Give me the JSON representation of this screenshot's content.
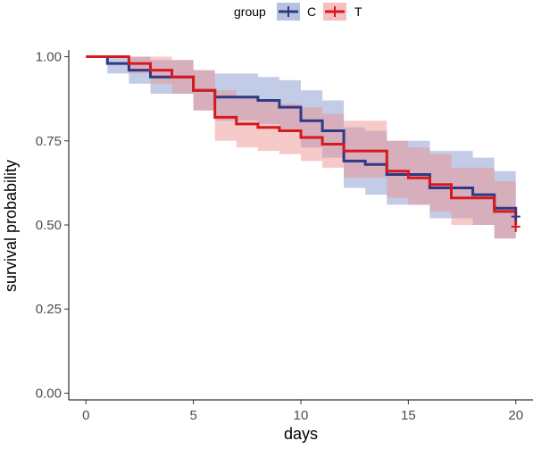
{
  "chart_data": {
    "type": "line",
    "subtype": "kaplan-meier step",
    "xlabel": "days",
    "ylabel": "survival probability",
    "xlim": [
      -0.8,
      20.8
    ],
    "ylim": [
      -0.02,
      1.02
    ],
    "x_ticks": [
      0,
      5,
      10,
      15,
      20
    ],
    "x_tick_labels": [
      "0",
      "5",
      "10",
      "15",
      "20"
    ],
    "y_ticks": [
      0,
      0.25,
      0.5,
      0.75,
      1.0
    ],
    "y_tick_labels": [
      "0.00",
      "0.25",
      "0.50",
      "0.75",
      "1.00"
    ],
    "grid": false,
    "legend": {
      "title": "group",
      "position": "top",
      "entries": [
        "C",
        "T"
      ]
    },
    "series": [
      {
        "name": "C",
        "color": "#2e3a87",
        "band_color": "#7b8fc8",
        "steps": [
          {
            "x": 0,
            "y": 1.0,
            "lower": 1.0,
            "upper": 1.0
          },
          {
            "x": 1,
            "y": 0.98,
            "lower": 0.95,
            "upper": 1.0
          },
          {
            "x": 2,
            "y": 0.96,
            "lower": 0.92,
            "upper": 1.0
          },
          {
            "x": 3,
            "y": 0.94,
            "lower": 0.89,
            "upper": 0.99
          },
          {
            "x": 5,
            "y": 0.9,
            "lower": 0.84,
            "upper": 0.96
          },
          {
            "x": 6,
            "y": 0.88,
            "lower": 0.81,
            "upper": 0.95
          },
          {
            "x": 8,
            "y": 0.87,
            "lower": 0.8,
            "upper": 0.94
          },
          {
            "x": 9,
            "y": 0.85,
            "lower": 0.78,
            "upper": 0.93
          },
          {
            "x": 10,
            "y": 0.81,
            "lower": 0.73,
            "upper": 0.9
          },
          {
            "x": 11,
            "y": 0.78,
            "lower": 0.7,
            "upper": 0.87
          },
          {
            "x": 12,
            "y": 0.69,
            "lower": 0.61,
            "upper": 0.79
          },
          {
            "x": 13,
            "y": 0.68,
            "lower": 0.59,
            "upper": 0.78
          },
          {
            "x": 14,
            "y": 0.65,
            "lower": 0.56,
            "upper": 0.75
          },
          {
            "x": 16,
            "y": 0.61,
            "lower": 0.52,
            "upper": 0.72
          },
          {
            "x": 18,
            "y": 0.59,
            "lower": 0.5,
            "upper": 0.7
          },
          {
            "x": 19,
            "y": 0.55,
            "lower": 0.46,
            "upper": 0.66
          },
          {
            "x": 20,
            "y": 0.53,
            "lower": 0.46,
            "upper": 0.65
          }
        ],
        "censor": {
          "x": 20,
          "y": 0.525
        }
      },
      {
        "name": "T",
        "color": "#d7191c",
        "band_color": "#ee8a8a",
        "steps": [
          {
            "x": 0,
            "y": 1.0,
            "lower": 1.0,
            "upper": 1.0
          },
          {
            "x": 2,
            "y": 0.98,
            "lower": 0.95,
            "upper": 1.0
          },
          {
            "x": 3,
            "y": 0.96,
            "lower": 0.92,
            "upper": 1.0
          },
          {
            "x": 4,
            "y": 0.94,
            "lower": 0.89,
            "upper": 0.99
          },
          {
            "x": 5,
            "y": 0.9,
            "lower": 0.84,
            "upper": 0.96
          },
          {
            "x": 6,
            "y": 0.82,
            "lower": 0.75,
            "upper": 0.9
          },
          {
            "x": 7,
            "y": 0.8,
            "lower": 0.73,
            "upper": 0.88
          },
          {
            "x": 8,
            "y": 0.79,
            "lower": 0.72,
            "upper": 0.87
          },
          {
            "x": 9,
            "y": 0.78,
            "lower": 0.71,
            "upper": 0.86
          },
          {
            "x": 10,
            "y": 0.76,
            "lower": 0.69,
            "upper": 0.85
          },
          {
            "x": 11,
            "y": 0.74,
            "lower": 0.67,
            "upper": 0.83
          },
          {
            "x": 12,
            "y": 0.72,
            "lower": 0.64,
            "upper": 0.81
          },
          {
            "x": 14,
            "y": 0.66,
            "lower": 0.58,
            "upper": 0.75
          },
          {
            "x": 15,
            "y": 0.64,
            "lower": 0.56,
            "upper": 0.73
          },
          {
            "x": 16,
            "y": 0.62,
            "lower": 0.54,
            "upper": 0.71
          },
          {
            "x": 17,
            "y": 0.58,
            "lower": 0.5,
            "upper": 0.67
          },
          {
            "x": 19,
            "y": 0.54,
            "lower": 0.46,
            "upper": 0.63
          },
          {
            "x": 20,
            "y": 0.5,
            "lower": 0.46,
            "upper": 0.55
          }
        ],
        "censor": {
          "x": 20,
          "y": 0.495
        }
      }
    ]
  }
}
